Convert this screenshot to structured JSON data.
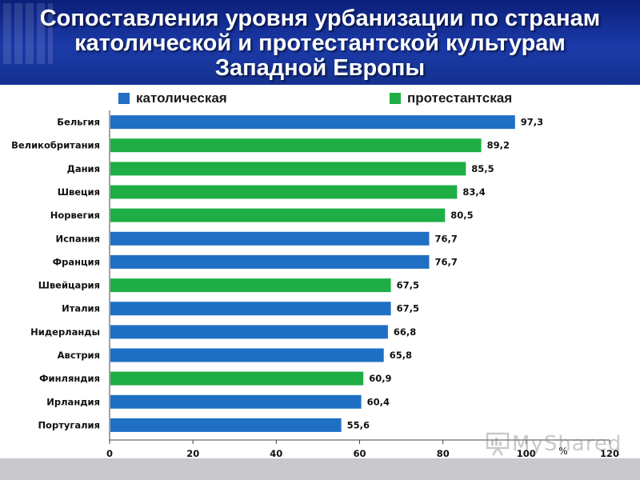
{
  "header": {
    "title_lines": [
      "Сопоставления уровня урбанизации по странам",
      "католической и протестантской культурам",
      "Западной Европы"
    ]
  },
  "colors": {
    "header_bg": "#14318f",
    "catholic": "#1f6fc4",
    "protestant": "#1fae45"
  },
  "watermark": {
    "text": "MyShared",
    "icon": "presentation-board-icon"
  },
  "chart_data": {
    "type": "bar",
    "orientation": "horizontal",
    "categories": [
      "Бельгия",
      "Великобритания",
      "Дания",
      "Швеция",
      "Норвегия",
      "Испания",
      "Франция",
      "Швейцария",
      "Италия",
      "Нидерланды",
      "Австрия",
      "Финляндия",
      "Ирландия",
      "Португалия"
    ],
    "values": [
      97.3,
      89.2,
      85.5,
      83.4,
      80.5,
      76.7,
      76.7,
      67.5,
      67.5,
      66.8,
      65.8,
      60.9,
      60.4,
      55.6
    ],
    "value_labels": [
      "97,3",
      "89,2",
      "85,5",
      "83,4",
      "80,5",
      "76,7",
      "76,7",
      "67,5",
      "67,5",
      "66,8",
      "65,8",
      "60,9",
      "60,4",
      "55,6"
    ],
    "groups": [
      "католическая",
      "протестантская",
      "протестантская",
      "протестантская",
      "протестантская",
      "католическая",
      "католическая",
      "протестантская",
      "католическая",
      "католическая",
      "католическая",
      "протестантская",
      "католическая",
      "католическая"
    ],
    "legend": [
      {
        "name": "католическая",
        "color": "#1f6fc4"
      },
      {
        "name": "протестантская",
        "color": "#1fae45"
      }
    ],
    "legend_position": "top",
    "xlim": [
      0,
      120
    ],
    "x_ticks": [
      0,
      20,
      40,
      60,
      80,
      100,
      120
    ],
    "x_unit": "%",
    "grid": false
  }
}
